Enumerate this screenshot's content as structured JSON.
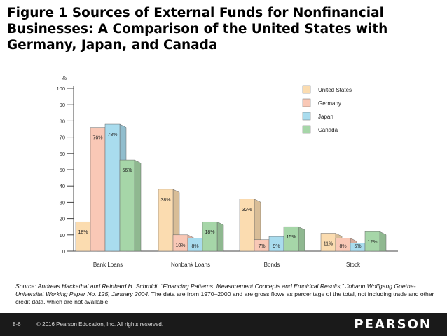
{
  "title": "Figure 1 Sources of External Funds for Nonfinancial Businesses: A Comparison of the United States with Germany, Japan, and Canada",
  "chart_data": {
    "type": "bar",
    "ylabel": "%",
    "ylim": [
      0,
      100
    ],
    "yticks": [
      "0",
      "10",
      "20",
      "30",
      "40",
      "50",
      "60",
      "70",
      "80",
      "90",
      "100"
    ],
    "categories": [
      "Bank Loans",
      "Nonbank Loans",
      "Bonds",
      "Stock"
    ],
    "series": [
      {
        "name": "United States",
        "color": "#fbdcb0",
        "values": [
          18,
          38,
          32,
          11
        ],
        "labels": [
          "18%",
          "38%",
          "32%",
          "11%"
        ]
      },
      {
        "name": "Germany",
        "color": "#f9c8b6",
        "values": [
          76,
          10,
          7,
          8
        ],
        "labels": [
          "76%",
          "10%",
          "7%",
          "8%"
        ]
      },
      {
        "name": "Japan",
        "color": "#a9dcee",
        "values": [
          78,
          8,
          9,
          5
        ],
        "labels": [
          "78%",
          "8%",
          "9%",
          "5%"
        ]
      },
      {
        "name": "Canada",
        "color": "#a6d6a8",
        "values": [
          56,
          18,
          15,
          12
        ],
        "labels": [
          "56%",
          "18%",
          "15%",
          "12%"
        ]
      }
    ]
  },
  "source": {
    "prefix": "Source: Andreas Hackethal and Reinhard H. Schmidt, “Financing Patterns: Measurement Concepts and Empirical Results,” Johann Wolfgang Goethe-Universitat Working Paper No. 125, January 2004.",
    "note": " The data are from 1970–2000 and are gross flows as percentage of the total, not including trade and other credit data, which are not available."
  },
  "footer": {
    "page": "8-6",
    "copyright": "© 2016 Pearson Education, Inc. All rights reserved.",
    "brand": "PEARSON"
  }
}
